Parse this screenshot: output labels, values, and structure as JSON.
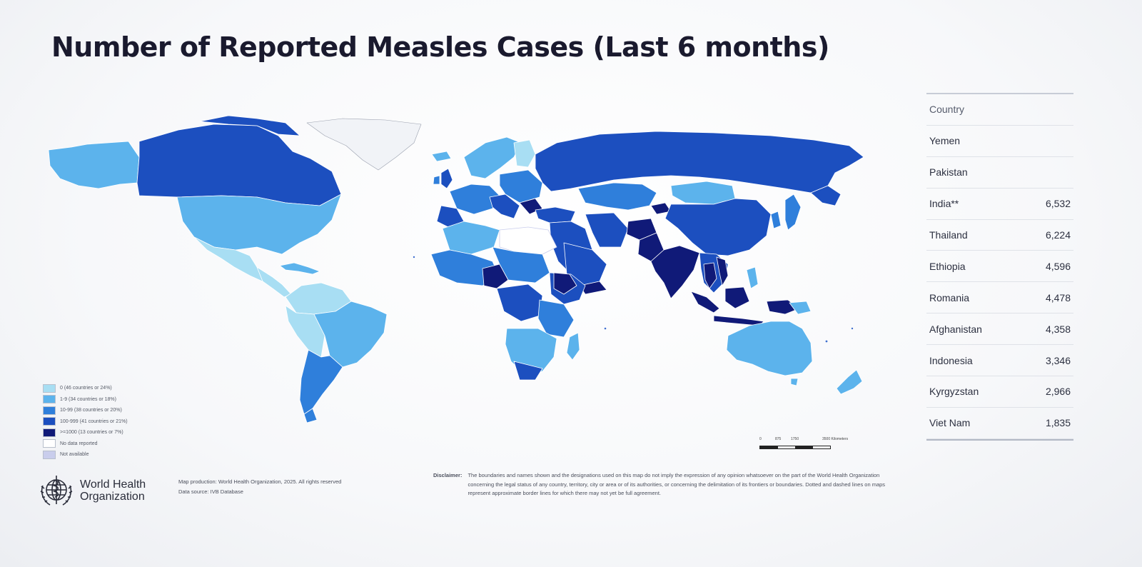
{
  "title": "Number of Reported Measles Cases (Last 6 months)",
  "colors": {
    "zero": "#a8def3",
    "c1_9": "#5cb3ec",
    "c10_99": "#2f7fdb",
    "c100_999": "#1c4fbf",
    "c1000_plus": "#101a78",
    "no_data": "#ffffff",
    "not_available": "#c9cdec"
  },
  "legend": [
    {
      "label": "0 (46 countries or 24%)",
      "color": "#a8def3"
    },
    {
      "label": "1-9 (34 countries or 18%)",
      "color": "#5cb3ec"
    },
    {
      "label": "10-99 (38 countries or 20%)",
      "color": "#2f7fdb"
    },
    {
      "label": "100-999 (41 countries or 21%)",
      "color": "#1c4fbf"
    },
    {
      "label": ">=1000 (13 countries or 7%)",
      "color": "#101a78"
    },
    {
      "label": "No data reported",
      "color": "#ffffff"
    },
    {
      "label": "Not available",
      "color": "#c9cdec"
    }
  ],
  "scale": {
    "ticks": [
      "0",
      "875",
      "1750",
      "3500 Kilometers"
    ]
  },
  "table": {
    "header": {
      "country": "Country",
      "cases": ""
    },
    "rows": [
      {
        "country": "Yemen",
        "cases": ""
      },
      {
        "country": "Pakistan",
        "cases": ""
      },
      {
        "country": "India**",
        "cases": "6,532"
      },
      {
        "country": "Thailand",
        "cases": "6,224"
      },
      {
        "country": "Ethiopia",
        "cases": "4,596"
      },
      {
        "country": "Romania",
        "cases": "4,478"
      },
      {
        "country": "Afghanistan",
        "cases": "4,358"
      },
      {
        "country": "Indonesia",
        "cases": "3,346"
      },
      {
        "country": "Kyrgyzstan",
        "cases": "2,966"
      },
      {
        "country": "Viet Nam",
        "cases": "1,835"
      }
    ]
  },
  "footer": {
    "org_line1": "World Health",
    "org_line2": "Organization",
    "production_line1": "Map production: World Health Organization, 2025. All rights reserved",
    "production_line2": "Data source: IVB Database",
    "disclaimer_label": "Disclaimer:",
    "disclaimer_text": "The boundaries and names shown and the designations used on this map do not imply the expression of any opinion whatsoever on the part of the World Health Organization concerning the legal status of any country, territory, city or area or of its authorities, or concerning the delimitation of its frontiers or boundaries. Dotted and dashed lines on maps represent approximate border lines for which there may not yet be full agreement."
  }
}
